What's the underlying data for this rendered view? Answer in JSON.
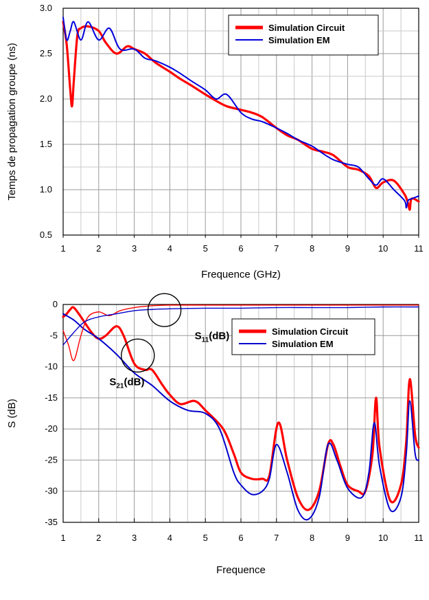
{
  "chart_data": [
    {
      "type": "line",
      "xlabel": "Frequence (GHz)",
      "ylabel": "Temps de propagation groupe (ns)",
      "xlim": [
        1,
        11
      ],
      "ylim": [
        0.5,
        3.0
      ],
      "x_ticks": [
        "1",
        "2",
        "3",
        "4",
        "5",
        "6",
        "7",
        "8",
        "9",
        "10",
        "11"
      ],
      "y_ticks": [
        "0.5",
        "1.0",
        "1.5",
        "2.0",
        "2.5",
        "3.0"
      ],
      "grid": true,
      "legend_position": "top-right",
      "series": [
        {
          "name": "Simulation Circuit",
          "color": "#ff0000",
          "x": [
            1.0,
            1.1,
            1.2,
            1.25,
            1.3,
            1.4,
            1.5,
            1.7,
            2.0,
            2.2,
            2.5,
            2.8,
            3.0,
            3.3,
            3.6,
            4.0,
            4.3,
            4.6,
            5.0,
            5.3,
            5.6,
            6.0,
            6.3,
            6.6,
            7.0,
            7.3,
            7.6,
            8.0,
            8.3,
            8.6,
            9.0,
            9.3,
            9.6,
            9.8,
            10.0,
            10.3,
            10.6,
            10.7,
            10.75,
            10.8,
            11.0
          ],
          "y": [
            2.85,
            2.6,
            2.1,
            1.92,
            2.2,
            2.7,
            2.78,
            2.8,
            2.75,
            2.62,
            2.5,
            2.58,
            2.55,
            2.5,
            2.4,
            2.3,
            2.22,
            2.15,
            2.05,
            1.98,
            1.92,
            1.88,
            1.85,
            1.8,
            1.68,
            1.6,
            1.55,
            1.45,
            1.42,
            1.38,
            1.25,
            1.22,
            1.15,
            1.02,
            1.08,
            1.1,
            0.95,
            0.85,
            0.78,
            0.9,
            0.87
          ]
        },
        {
          "name": "Simulation EM",
          "color": "#0000dd",
          "x": [
            1.0,
            1.1,
            1.2,
            1.3,
            1.5,
            1.7,
            2.0,
            2.3,
            2.6,
            3.0,
            3.3,
            3.6,
            4.0,
            4.3,
            4.6,
            5.0,
            5.3,
            5.6,
            6.0,
            6.3,
            6.6,
            7.0,
            7.3,
            7.6,
            8.0,
            8.3,
            8.6,
            9.0,
            9.3,
            9.6,
            9.8,
            10.0,
            10.3,
            10.6,
            10.65,
            10.7,
            10.8,
            11.0
          ],
          "y": [
            2.9,
            2.65,
            2.75,
            2.85,
            2.65,
            2.85,
            2.65,
            2.78,
            2.55,
            2.55,
            2.45,
            2.42,
            2.35,
            2.28,
            2.2,
            2.1,
            2.0,
            2.05,
            1.85,
            1.78,
            1.75,
            1.68,
            1.62,
            1.55,
            1.48,
            1.4,
            1.33,
            1.28,
            1.25,
            1.12,
            1.05,
            1.12,
            1.0,
            0.88,
            0.8,
            0.88,
            0.9,
            0.93
          ]
        }
      ]
    },
    {
      "type": "line",
      "xlabel": "Frequence",
      "ylabel": "S (dB)",
      "xlim": [
        1,
        11
      ],
      "ylim": [
        -35,
        0
      ],
      "x_ticks": [
        "1",
        "2",
        "3",
        "4",
        "5",
        "6",
        "7",
        "8",
        "9",
        "10",
        "11"
      ],
      "y_ticks": [
        "0",
        "-5",
        "-10",
        "-15",
        "-20",
        "-25",
        "-30",
        "-35"
      ],
      "grid": true,
      "legend_position": "top-right",
      "annotations": [
        {
          "text": "S",
          "sub": "11",
          "suffix": "(dB)",
          "x": 4.7,
          "y": -5.6
        },
        {
          "text": "S",
          "sub": "21",
          "suffix": "(dB)",
          "x": 2.3,
          "y": -13.0
        }
      ],
      "series": [
        {
          "name": "Simulation Circuit",
          "role": "S21",
          "color": "#ff0000",
          "x": [
            1.0,
            1.1,
            1.2,
            1.3,
            1.5,
            1.8,
            2.0,
            2.2,
            2.5,
            2.7,
            3.0,
            3.3,
            3.5,
            3.8,
            4.0,
            4.3,
            4.7,
            5.0,
            5.5,
            5.8,
            6.0,
            6.3,
            6.6,
            6.8,
            7.05,
            7.3,
            7.6,
            7.9,
            8.2,
            8.45,
            8.6,
            8.8,
            9.0,
            9.3,
            9.5,
            9.7,
            9.8,
            9.9,
            10.2,
            10.5,
            10.65,
            10.75,
            10.9,
            11.0
          ],
          "y": [
            -2.0,
            -1.5,
            -0.8,
            -0.5,
            -2.0,
            -4.5,
            -5.5,
            -5.0,
            -3.5,
            -5.0,
            -9.5,
            -10.5,
            -10.5,
            -13.0,
            -14.5,
            -16.0,
            -15.5,
            -17.0,
            -20.0,
            -24.0,
            -27.0,
            -28.0,
            -28.0,
            -27.5,
            -19.0,
            -25.0,
            -31.0,
            -33.0,
            -30.0,
            -22.5,
            -22.5,
            -26.0,
            -29.0,
            -30.0,
            -30.0,
            -24.0,
            -15.0,
            -23.0,
            -31.5,
            -29.0,
            -22.0,
            -12.0,
            -21.0,
            -23.0
          ]
        },
        {
          "name": "Simulation EM",
          "role": "S21",
          "color": "#0000cc",
          "x": [
            1.0,
            1.3,
            1.6,
            2.0,
            2.5,
            3.0,
            3.5,
            4.0,
            4.5,
            5.0,
            5.4,
            5.8,
            6.0,
            6.3,
            6.6,
            6.8,
            7.0,
            7.3,
            7.6,
            7.9,
            8.2,
            8.45,
            8.7,
            9.0,
            9.4,
            9.6,
            9.75,
            9.9,
            10.2,
            10.5,
            10.65,
            10.75,
            10.9,
            11.0
          ],
          "y": [
            -1.5,
            -2.5,
            -4.0,
            -5.5,
            -8.0,
            -11.0,
            -13.0,
            -15.5,
            -17.0,
            -17.5,
            -20.0,
            -27.0,
            -29.0,
            -30.5,
            -30.0,
            -28.0,
            -22.5,
            -27.0,
            -33.0,
            -34.5,
            -31.0,
            -22.5,
            -25.0,
            -29.5,
            -31.0,
            -27.0,
            -19.0,
            -26.0,
            -33.0,
            -31.0,
            -24.0,
            -15.5,
            -24.0,
            -25.0
          ]
        },
        {
          "name": "Simulation Circuit",
          "role": "S11",
          "show_in_legend": false,
          "color": "#ff0000",
          "x": [
            1.0,
            1.15,
            1.3,
            1.5,
            1.7,
            2.0,
            2.3,
            2.6,
            3.0,
            3.5,
            4.0,
            5.0,
            6.0,
            7.0,
            8.0,
            9.0,
            10.0,
            11.0
          ],
          "y": [
            -4.2,
            -6.5,
            -9.0,
            -5.0,
            -2.0,
            -1.2,
            -1.8,
            -1.0,
            -0.5,
            -0.2,
            -0.1,
            -0.1,
            -0.1,
            -0.1,
            -0.1,
            -0.1,
            -0.1,
            -0.1
          ]
        },
        {
          "name": "Simulation EM",
          "role": "S11",
          "show_in_legend": false,
          "color": "#0000cc",
          "x": [
            1.0,
            1.3,
            1.6,
            2.0,
            2.5,
            3.0,
            3.5,
            4.0,
            5.0,
            6.0,
            7.0,
            8.0,
            9.0,
            10.0,
            11.0
          ],
          "y": [
            -6.5,
            -4.5,
            -2.8,
            -2.0,
            -1.5,
            -1.0,
            -0.8,
            -0.7,
            -0.6,
            -0.6,
            -0.5,
            -0.5,
            -0.5,
            -0.4,
            -0.4
          ]
        }
      ]
    }
  ]
}
